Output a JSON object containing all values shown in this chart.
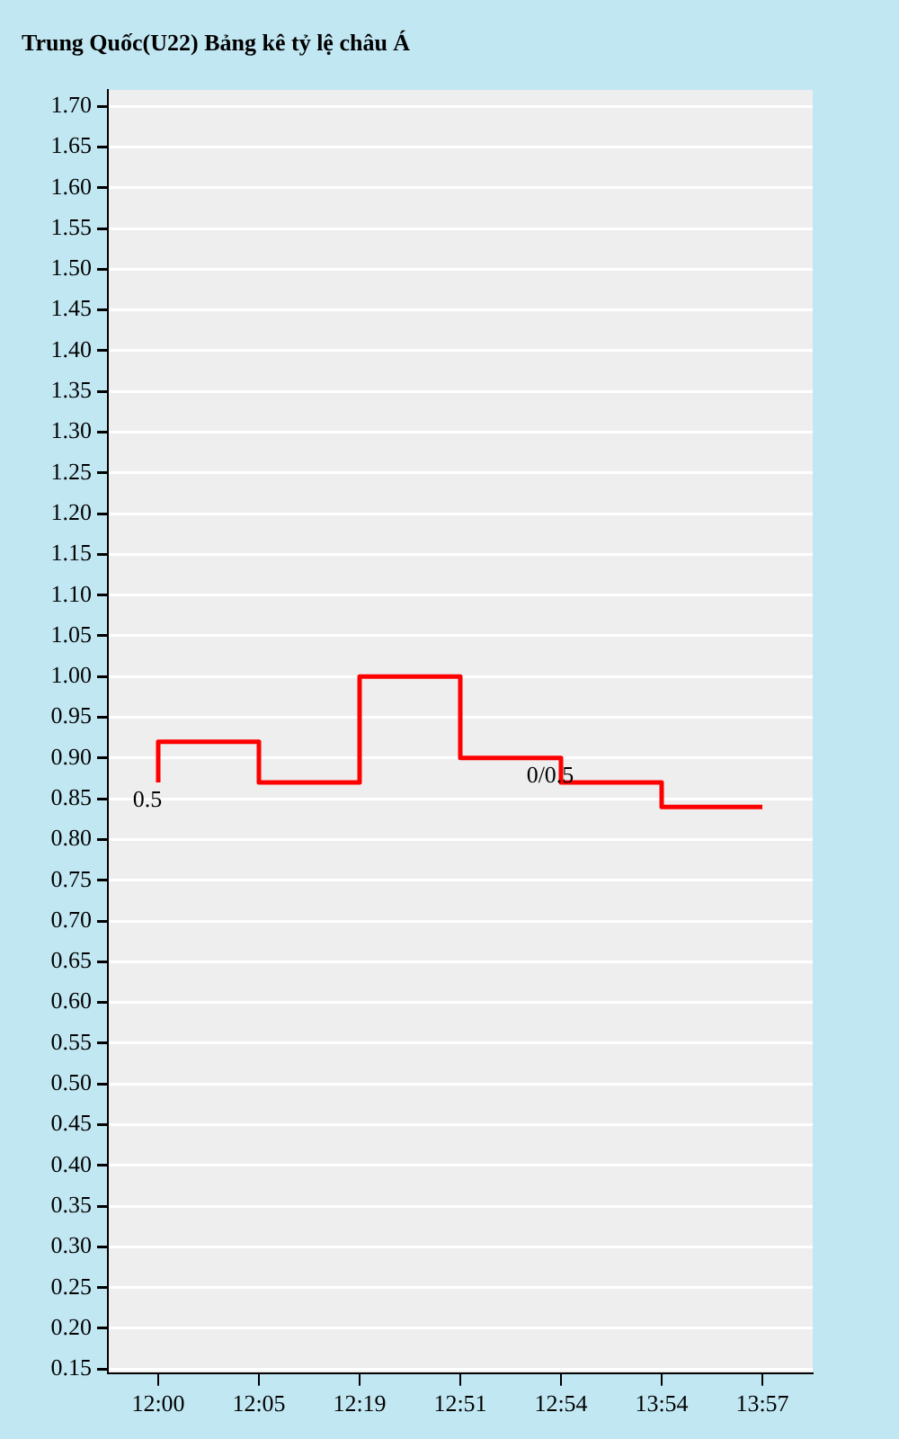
{
  "chart_data": {
    "type": "step",
    "title": "Trung Quốc(U22) Bảng kê tỷ lệ châu Á",
    "categories": [
      "12:00",
      "12:05",
      "12:19",
      "12:51",
      "12:54",
      "13:54",
      "13:57"
    ],
    "series": [
      {
        "color": "#ff0000",
        "values": [
          0.87,
          0.92,
          0.87,
          1.0,
          0.9,
          0.87,
          0.84
        ]
      }
    ],
    "ylim": [
      0.145,
      1.72
    ],
    "yticks": [
      {
        "value": 0.15,
        "label": "0.15"
      },
      {
        "value": 0.2,
        "label": "0.20"
      },
      {
        "value": 0.25,
        "label": "0.25"
      },
      {
        "value": 0.3,
        "label": "0.30"
      },
      {
        "value": 0.35,
        "label": "0.35"
      },
      {
        "value": 0.4,
        "label": "0.40"
      },
      {
        "value": 0.45,
        "label": "0.45"
      },
      {
        "value": 0.5,
        "label": "0.50"
      },
      {
        "value": 0.55,
        "label": "0.55"
      },
      {
        "value": 0.6,
        "label": "0.60"
      },
      {
        "value": 0.65,
        "label": "0.65"
      },
      {
        "value": 0.7,
        "label": "0.70"
      },
      {
        "value": 0.75,
        "label": "0.75"
      },
      {
        "value": 0.8,
        "label": "0.80"
      },
      {
        "value": 0.85,
        "label": "0.85"
      },
      {
        "value": 0.9,
        "label": "0.90"
      },
      {
        "value": 0.95,
        "label": "0.95"
      },
      {
        "value": 1.0,
        "label": "1.00"
      },
      {
        "value": 1.05,
        "label": "1.05"
      },
      {
        "value": 1.1,
        "label": "1.10"
      },
      {
        "value": 1.15,
        "label": "1.15"
      },
      {
        "value": 1.2,
        "label": "1.20"
      },
      {
        "value": 1.25,
        "label": "1.25"
      },
      {
        "value": 1.3,
        "label": "1.30"
      },
      {
        "value": 1.35,
        "label": "1.35"
      },
      {
        "value": 1.4,
        "label": "1.40"
      },
      {
        "value": 1.45,
        "label": "1.45"
      },
      {
        "value": 1.5,
        "label": "1.50"
      },
      {
        "value": 1.55,
        "label": "1.55"
      },
      {
        "value": 1.6,
        "label": "1.60"
      },
      {
        "value": 1.65,
        "label": "1.65"
      },
      {
        "value": 1.7,
        "label": "1.70"
      }
    ],
    "grid": "y",
    "marker": "none",
    "annotations": [
      {
        "text": "0.5",
        "x": "12:00",
        "y": 0.87
      },
      {
        "text": "0/0.5",
        "x": "12:54",
        "y": 0.9
      }
    ]
  }
}
